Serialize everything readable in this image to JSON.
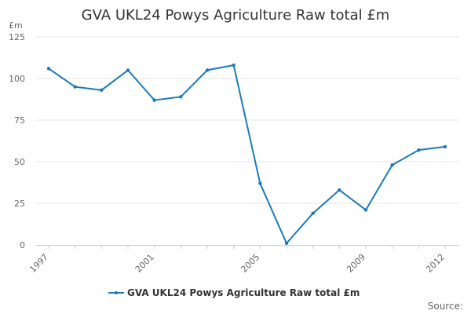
{
  "chart_data": {
    "type": "line",
    "title": "GVA UKL24 Powys Agriculture Raw total £m",
    "ylabel": "£m",
    "xlabel": "",
    "ylim": [
      0,
      125
    ],
    "yticks": [
      0,
      25,
      50,
      75,
      100,
      125
    ],
    "xlim": [
      1997,
      2012
    ],
    "xtick_labels": [
      "1997",
      "2001",
      "2005",
      "2009",
      "2012"
    ],
    "grid": true,
    "legend_position": "bottom",
    "series": [
      {
        "name": "GVA UKL24 Powys Agriculture Raw total £m",
        "color": "#1a7ab8",
        "x": [
          1997,
          1998,
          1999,
          2000,
          2001,
          2002,
          2003,
          2004,
          2005,
          2006,
          2007,
          2008,
          2009,
          2010,
          2011,
          2012
        ],
        "values": [
          106,
          95,
          93,
          105,
          87,
          89,
          105,
          108,
          37,
          1,
          19,
          33,
          21,
          48,
          57,
          59
        ]
      }
    ]
  },
  "footer": {
    "source_label": "Source:"
  }
}
